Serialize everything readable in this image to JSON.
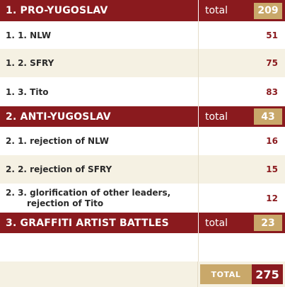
{
  "sections": [
    {
      "title": "1. PRO-YUGOSLAV",
      "total_label": "total",
      "total": "209",
      "items": [
        {
          "label": "1. 1. NLW",
          "value": "51"
        },
        {
          "label": "1. 2. SFRY",
          "value": "75"
        },
        {
          "label": "1. 3. Tito",
          "value": "83"
        }
      ]
    },
    {
      "title": "2. ANTI-YUGOSLAV",
      "total_label": "total",
      "total": "43",
      "items": [
        {
          "label": "2. 1. rejection of NLW",
          "value": "16"
        },
        {
          "label": "2. 2. rejection of SFRY",
          "value": "15"
        },
        {
          "label_line1": "2. 3. glorification of other leaders,",
          "label_line2": "rejection of Tito",
          "value": "12"
        }
      ]
    },
    {
      "title": "3. GRAFFITI ARTIST BATTLES",
      "total_label": "total",
      "total": "23",
      "items": []
    }
  ],
  "grand_total": {
    "label": "TOTAL",
    "value": "275"
  },
  "colors": {
    "section_bg": "#8a1a1e",
    "badge_gold": "#c9a86a",
    "row_cream": "#f5f1e3",
    "value_text": "#8a1a1e"
  }
}
